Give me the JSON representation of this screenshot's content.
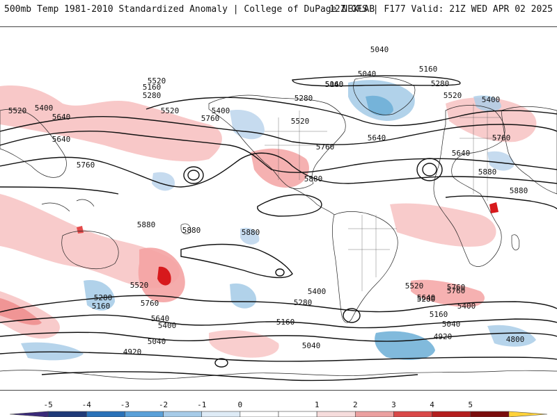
{
  "header": {
    "title": "500mb Temp 1981-2010 Standardized Anomaly | College of DuPage NEXLAB",
    "run_info": "12Z GFS | F177 Valid: 21Z WED APR 02 2025"
  },
  "map": {
    "projection": "global cylindrical",
    "field": "500mb temperature standardized anomaly (shaded) with 500mb height contours",
    "contour_labels": [
      "5040",
      "5040",
      "5160",
      "5280",
      "5520",
      "5640",
      "5160",
      "5280",
      "5400",
      "5520",
      "5760",
      "5280",
      "5040",
      "5400",
      "5520",
      "5640",
      "5160",
      "5760",
      "5880",
      "5520",
      "5400",
      "5640",
      "5760",
      "5880",
      "5640",
      "5880",
      "5760",
      "5520",
      "5880",
      "5880",
      "5640",
      "5760",
      "5520",
      "5400",
      "5280",
      "5160",
      "5040",
      "4920",
      "5040",
      "5160",
      "5280",
      "5400",
      "5640",
      "5760",
      "5880",
      "5520",
      "5760",
      "5400",
      "5280",
      "5160",
      "5040",
      "4920",
      "4800"
    ],
    "anomaly_colors": {
      "strong_warm": "#d7191c",
      "warm": "#f4a3a3",
      "light_warm": "#fbd6d6",
      "light_cold": "#c6dbef",
      "cold": "#6baed6",
      "strong_cold": "#2b7bba"
    }
  },
  "colorbar": {
    "ticks": [
      "-5",
      "-4",
      "-3",
      "-2",
      "-1",
      "0",
      "1",
      "2",
      "3",
      "4",
      "5"
    ],
    "colors": [
      "#3a2a7a",
      "#1f3a78",
      "#2a72b8",
      "#5aa0d8",
      "#a6cbe8",
      "#deebf6",
      "#ffffff",
      "#ffffff",
      "#f6dcdc",
      "#eba0a0",
      "#d94848",
      "#b41e1e",
      "#7a0d0d",
      "#ffd23a"
    ]
  }
}
